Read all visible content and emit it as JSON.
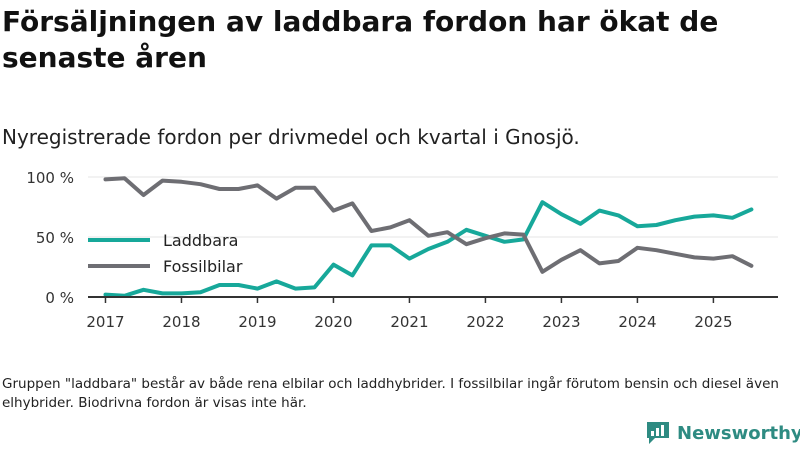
{
  "title": "Försäljningen av laddbara fordon har ökat de senaste åren",
  "subtitle": "Nyregistrerade fordon per drivmedel och kvartal i Gnosjö.",
  "footnote": "Gruppen \"laddbara\" består av både rena elbilar och laddhybrider. I fossilbilar ingår förutom bensin och diesel även elhybrider. Biodrivna fordon är visas inte här.",
  "brand": {
    "name": "Newsworthy"
  },
  "colors": {
    "laddbara": "#17a89a",
    "fossil": "#6e6e73",
    "axis": "#333333",
    "grid": "#e6e6e6",
    "brand": "#2e8b82"
  },
  "chart_data": {
    "type": "line",
    "title": "Försäljningen av laddbara fordon har ökat de senaste åren",
    "subtitle": "Nyregistrerade fordon per drivmedel och kvartal i Gnosjö.",
    "xlabel": "",
    "ylabel": "",
    "ylim": [
      0,
      100
    ],
    "y_ticks": [
      0,
      50,
      100
    ],
    "y_tick_labels": [
      "0 %",
      "50 %",
      "100 %"
    ],
    "x_ticks": [
      2017,
      2018,
      2019,
      2020,
      2021,
      2022,
      2023,
      2024,
      2025
    ],
    "x_tick_labels": [
      "2017",
      "2018",
      "2019",
      "2020",
      "2021",
      "2022",
      "2023",
      "2024",
      "2025"
    ],
    "legend_position": "left",
    "x": [
      2017.0,
      2017.25,
      2017.5,
      2017.75,
      2018.0,
      2018.25,
      2018.5,
      2018.75,
      2019.0,
      2019.25,
      2019.5,
      2019.75,
      2020.0,
      2020.25,
      2020.5,
      2020.75,
      2021.0,
      2021.25,
      2021.5,
      2021.75,
      2022.0,
      2022.25,
      2022.5,
      2022.75,
      2023.0,
      2023.25,
      2023.5,
      2023.75,
      2024.0,
      2024.25,
      2024.5,
      2024.75,
      2025.0,
      2025.25,
      2025.5
    ],
    "series": [
      {
        "name": "Laddbara",
        "color": "#17a89a",
        "values": [
          2,
          1,
          6,
          3,
          3,
          4,
          10,
          10,
          7,
          13,
          7,
          8,
          27,
          18,
          43,
          43,
          32,
          40,
          46,
          56,
          51,
          46,
          48,
          79,
          69,
          61,
          72,
          68,
          59,
          60,
          64,
          67,
          68,
          66,
          73
        ]
      },
      {
        "name": "Fossilbilar",
        "color": "#6e6e73",
        "values": [
          98,
          99,
          85,
          97,
          96,
          94,
          90,
          90,
          93,
          82,
          91,
          91,
          72,
          78,
          55,
          58,
          64,
          51,
          54,
          44,
          49,
          53,
          52,
          21,
          31,
          39,
          28,
          30,
          41,
          39,
          36,
          33,
          32,
          34,
          26
        ]
      }
    ]
  }
}
